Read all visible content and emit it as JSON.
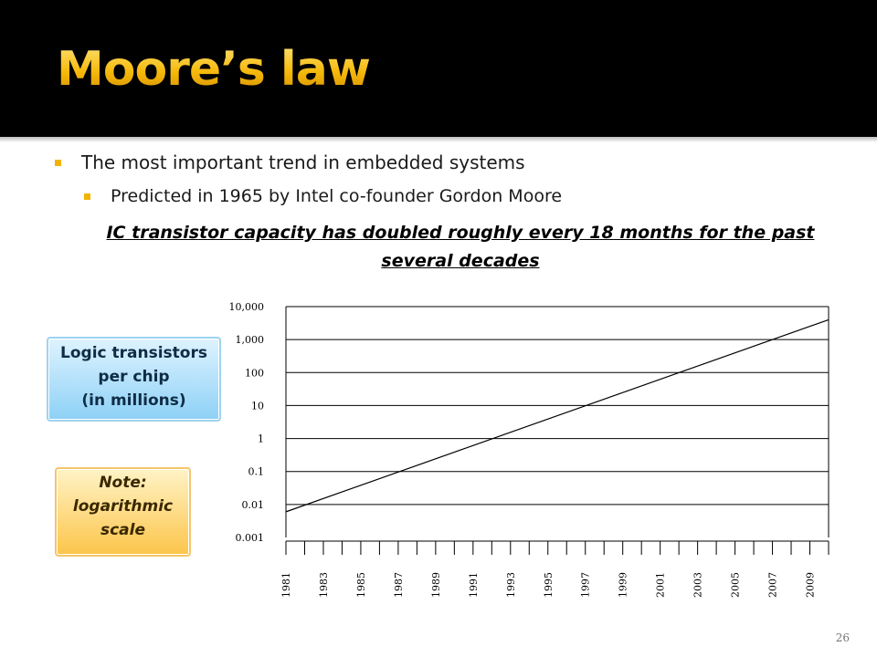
{
  "slide": {
    "title": "Moore’s law",
    "bullets": [
      "The most important trend in embedded systems",
      "Predicted in 1965 by Intel co-founder Gordon Moore"
    ],
    "statement": "IC transistor capacity has doubled roughly every 18 months for the past several decades",
    "callout_ylabel": [
      "Logic transistors",
      "per chip",
      "(in millions)"
    ],
    "callout_note": [
      "Note:",
      "logarithmic",
      "scale"
    ],
    "page_number": "26"
  },
  "colors": {
    "title_gold": "#f5b90a",
    "bullet_square": "#f0b400",
    "callout_blue": "#8dd1f6",
    "callout_orange": "#fcc54a"
  },
  "chart_data": {
    "type": "line",
    "yscale": "log",
    "y_ticks": [
      0.001,
      0.01,
      0.1,
      1,
      10,
      100,
      1000,
      10000
    ],
    "y_tick_labels": [
      "0.001",
      "0.01",
      "0.1",
      "1",
      "10",
      "100",
      "1,000",
      "10,000"
    ],
    "x_tick_labels": [
      "1981",
      "1983",
      "1985",
      "1987",
      "1989",
      "1991",
      "1993",
      "1995",
      "1997",
      "1999",
      "2001",
      "2003",
      "2005",
      "2007",
      "2009"
    ],
    "x_range": [
      1981,
      2010
    ],
    "series": [
      {
        "x": [
          1981,
          2010
        ],
        "y": [
          0.006,
          4000
        ]
      }
    ],
    "grid": "horizontal"
  }
}
